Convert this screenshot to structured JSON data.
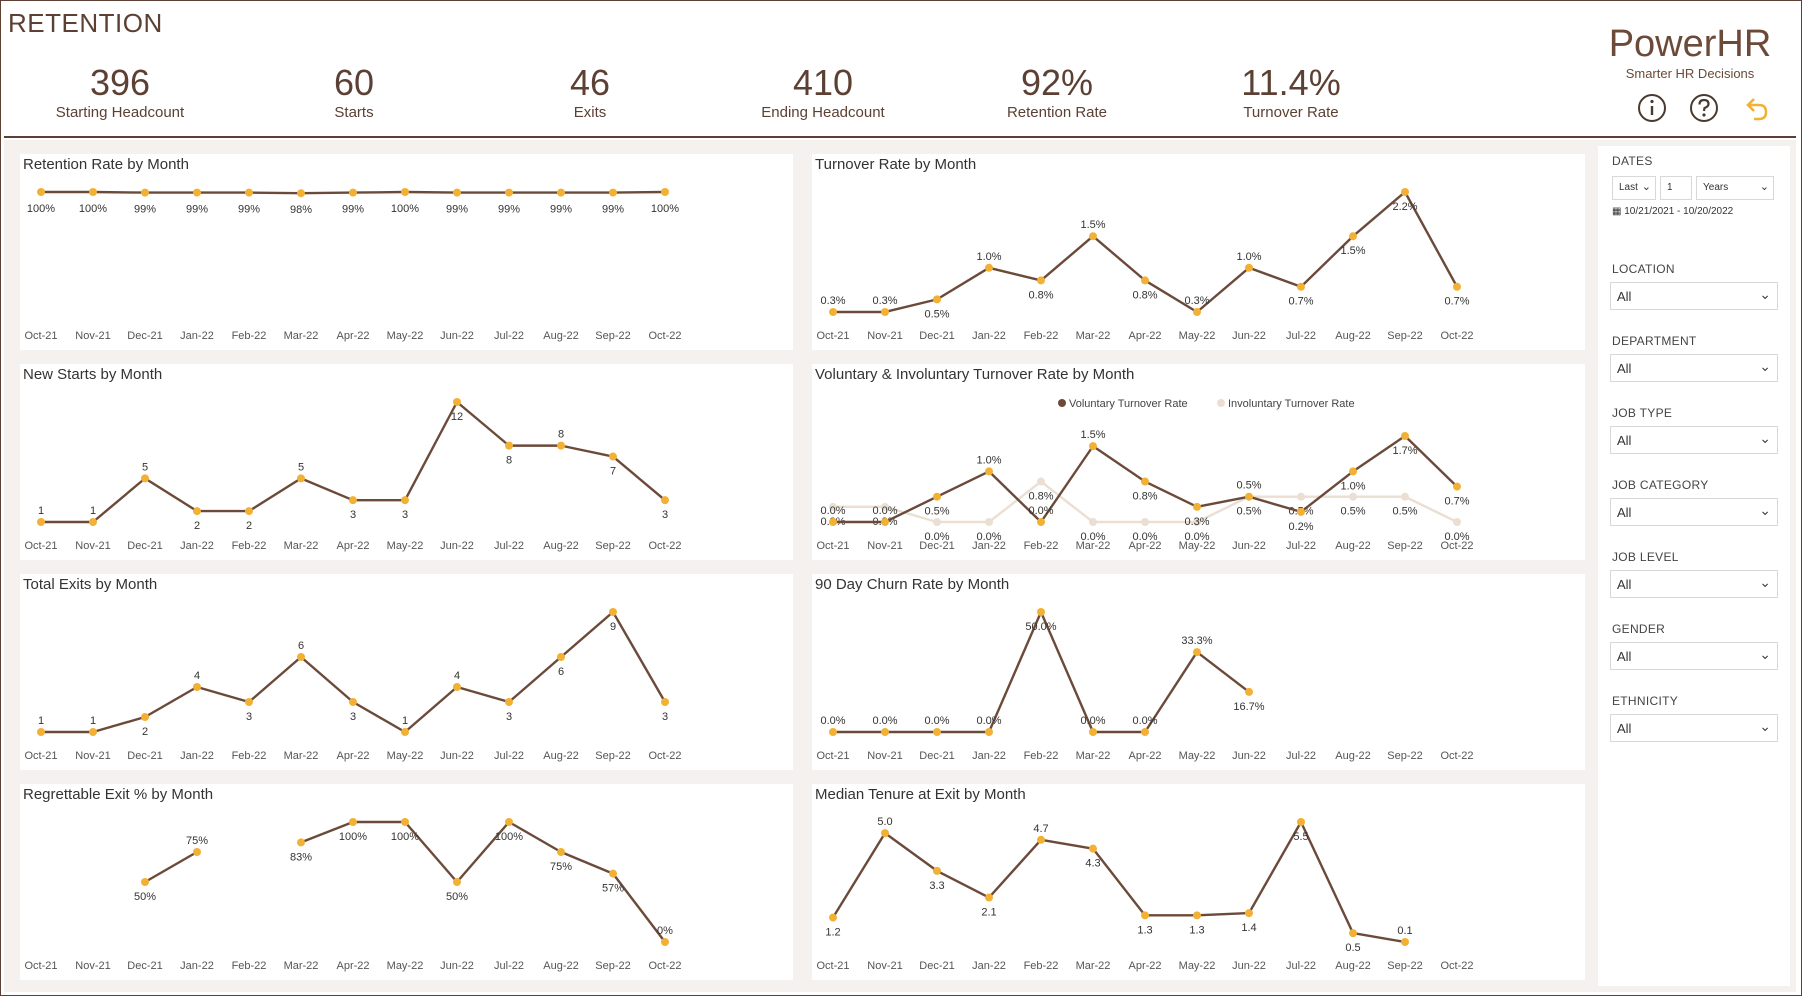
{
  "page": {
    "title": "RETENTION"
  },
  "kpis": [
    {
      "value": "396",
      "label": "Starting Headcount"
    },
    {
      "value": "60",
      "label": "Starts"
    },
    {
      "value": "46",
      "label": "Exits"
    },
    {
      "value": "410",
      "label": "Ending Headcount"
    },
    {
      "value": "92%",
      "label": "Retention Rate"
    },
    {
      "value": "11.4%",
      "label": "Turnover Rate"
    }
  ],
  "brand": {
    "name": "PowerHR",
    "tagline": "Smarter HR Decisions"
  },
  "icons": {
    "info": "info-icon",
    "help": "help-icon",
    "back": "back-arrow-icon"
  },
  "colors": {
    "line": "#6b4a3a",
    "marker": "#f2b134",
    "secondary": "#eadfd2",
    "text": "#5c4033"
  },
  "slicers": {
    "dates": {
      "label": "DATES",
      "mode": "Last",
      "count": "1",
      "unit": "Years",
      "range": "10/21/2021 - 10/20/2022"
    },
    "filters": [
      {
        "label": "LOCATION",
        "value": "All"
      },
      {
        "label": "DEPARTMENT",
        "value": "All"
      },
      {
        "label": "JOB TYPE",
        "value": "All"
      },
      {
        "label": "JOB CATEGORY",
        "value": "All"
      },
      {
        "label": "JOB LEVEL",
        "value": "All"
      },
      {
        "label": "GENDER",
        "value": "All"
      },
      {
        "label": "ETHNICITY",
        "value": "All"
      }
    ]
  },
  "chart_data": [
    {
      "type": "line",
      "title": "Retention Rate by Month",
      "categories": [
        "Oct-21",
        "Nov-21",
        "Dec-21",
        "Jan-22",
        "Feb-22",
        "Mar-22",
        "Apr-22",
        "May-22",
        "Jun-22",
        "Jul-22",
        "Aug-22",
        "Sep-22",
        "Oct-22"
      ],
      "values": [
        100,
        100,
        99,
        99,
        99,
        98,
        99,
        100,
        99,
        99,
        99,
        99,
        100
      ],
      "data_labels": [
        "100%",
        "100%",
        "99%",
        "99%",
        "99%",
        "98%",
        "99%",
        "100%",
        "99%",
        "99%",
        "99%",
        "99%",
        "100%"
      ],
      "ylim": [
        0,
        100
      ]
    },
    {
      "type": "line",
      "title": "Turnover Rate by Month",
      "categories": [
        "Oct-21",
        "Nov-21",
        "Dec-21",
        "Jan-22",
        "Feb-22",
        "Mar-22",
        "Apr-22",
        "May-22",
        "Jun-22",
        "Jul-22",
        "Aug-22",
        "Sep-22",
        "Oct-22"
      ],
      "values": [
        0.3,
        0.3,
        0.5,
        1.0,
        0.8,
        1.5,
        0.8,
        0.3,
        1.0,
        0.7,
        1.5,
        2.2,
        0.7
      ],
      "data_labels": [
        "0.3%",
        "0.3%",
        "0.5%",
        "1.0%",
        "0.8%",
        "1.5%",
        "0.8%",
        "0.3%",
        "1.0%",
        "0.7%",
        "1.5%",
        "2.2%",
        "0.7%"
      ],
      "ylim": [
        0.3,
        2.2
      ]
    },
    {
      "type": "line",
      "title": "New Starts by Month",
      "categories": [
        "Oct-21",
        "Nov-21",
        "Dec-21",
        "Jan-22",
        "Feb-22",
        "Mar-22",
        "Apr-22",
        "May-22",
        "Jun-22",
        "Jul-22",
        "Aug-22",
        "Sep-22",
        "Oct-22"
      ],
      "values": [
        1,
        1,
        5,
        2,
        2,
        5,
        3,
        3,
        12,
        8,
        8,
        7,
        3
      ],
      "data_labels": [
        "1",
        "1",
        "5",
        "2",
        "2",
        "5",
        "3",
        "3",
        "12",
        "8",
        "8",
        "7",
        "3"
      ],
      "ylim": [
        1,
        12
      ]
    },
    {
      "type": "line",
      "title": "Voluntary & Involuntary Turnover Rate by Month",
      "categories": [
        "Oct-21",
        "Nov-21",
        "Dec-21",
        "Jan-22",
        "Feb-22",
        "Mar-22",
        "Apr-22",
        "May-22",
        "Jun-22",
        "Jul-22",
        "Aug-22",
        "Sep-22",
        "Oct-22"
      ],
      "series": [
        {
          "name": "Voluntary Turnover Rate",
          "values": [
            0.0,
            0.0,
            0.5,
            1.0,
            0.0,
            1.5,
            0.8,
            0.3,
            0.5,
            0.2,
            1.0,
            1.7,
            0.7
          ],
          "data_labels": [
            "0.0%",
            "0.0%",
            "0.5%",
            "1.0%",
            "0.0%",
            "1.5%",
            "0.8%",
            "0.3%",
            "0.5%",
            "0.2%",
            "1.0%",
            "1.7%",
            "0.7%"
          ]
        },
        {
          "name": "Involuntary Turnover Rate",
          "values": [
            0.3,
            0.3,
            0.0,
            0.0,
            0.8,
            0.0,
            0.0,
            0.0,
            0.5,
            0.5,
            0.5,
            0.5,
            0.0
          ],
          "data_labels": [
            "0.3%",
            "0.3%",
            "0.0%",
            "0.0%",
            "0.8%",
            "0.0%",
            "0.0%",
            "0.0%",
            "0.5%",
            "0.5%",
            "0.5%",
            "0.5%",
            "0.0%"
          ]
        }
      ],
      "ylim": [
        0,
        1.7
      ],
      "legend": "top-center"
    },
    {
      "type": "line",
      "title": "Total Exits by Month",
      "categories": [
        "Oct-21",
        "Nov-21",
        "Dec-21",
        "Jan-22",
        "Feb-22",
        "Mar-22",
        "Apr-22",
        "May-22",
        "Jun-22",
        "Jul-22",
        "Aug-22",
        "Sep-22",
        "Oct-22"
      ],
      "values": [
        1,
        1,
        2,
        4,
        3,
        6,
        3,
        1,
        4,
        3,
        6,
        9,
        3
      ],
      "data_labels": [
        "1",
        "1",
        "2",
        "4",
        "3",
        "6",
        "3",
        "1",
        "4",
        "3",
        "6",
        "9",
        "3"
      ],
      "ylim": [
        1,
        9
      ]
    },
    {
      "type": "line",
      "title": "90 Day Churn Rate by Month",
      "categories": [
        "Oct-21",
        "Nov-21",
        "Dec-21",
        "Jan-22",
        "Feb-22",
        "Mar-22",
        "Apr-22",
        "May-22",
        "Jun-22",
        "Jul-22",
        "Aug-22",
        "Sep-22",
        "Oct-22"
      ],
      "values": [
        0.0,
        0.0,
        0.0,
        0.0,
        50.0,
        0.0,
        0.0,
        33.3,
        16.7,
        null,
        null,
        null,
        null
      ],
      "data_labels": [
        "0.0%",
        "0.0%",
        "0.0%",
        "0.0%",
        "50.0%",
        "0.0%",
        "0.0%",
        "33.3%",
        "16.7%",
        "",
        "",
        "",
        ""
      ],
      "ylim": [
        0,
        50
      ]
    },
    {
      "type": "line",
      "title": "Regrettable Exit % by Month",
      "categories": [
        "Oct-21",
        "Nov-21",
        "Dec-21",
        "Jan-22",
        "Feb-22",
        "Mar-22",
        "Apr-22",
        "May-22",
        "Jun-22",
        "Jul-22",
        "Aug-22",
        "Sep-22",
        "Oct-22"
      ],
      "values": [
        null,
        null,
        50,
        75,
        null,
        83,
        100,
        100,
        50,
        100,
        75,
        57,
        0
      ],
      "data_labels": [
        "",
        "",
        "50%",
        "75%",
        "",
        "83%",
        "100%",
        "100%",
        "50%",
        "100%",
        "75%",
        "57%",
        "0%"
      ],
      "ylim": [
        0,
        100
      ]
    },
    {
      "type": "line",
      "title": "Median Tenure at Exit by Month",
      "categories": [
        "Oct-21",
        "Nov-21",
        "Dec-21",
        "Jan-22",
        "Feb-22",
        "Mar-22",
        "Apr-22",
        "May-22",
        "Jun-22",
        "Jul-22",
        "Aug-22",
        "Sep-22",
        "Oct-22"
      ],
      "values": [
        1.2,
        5.0,
        3.3,
        2.1,
        4.7,
        4.3,
        1.3,
        1.3,
        1.4,
        5.5,
        0.5,
        0.1,
        null
      ],
      "data_labels": [
        "1.2",
        "5.0",
        "3.3",
        "2.1",
        "4.7",
        "4.3",
        "1.3",
        "1.3",
        "1.4",
        "5.5",
        "0.5",
        "0.1",
        ""
      ],
      "ylim": [
        0.1,
        5.5
      ]
    }
  ]
}
